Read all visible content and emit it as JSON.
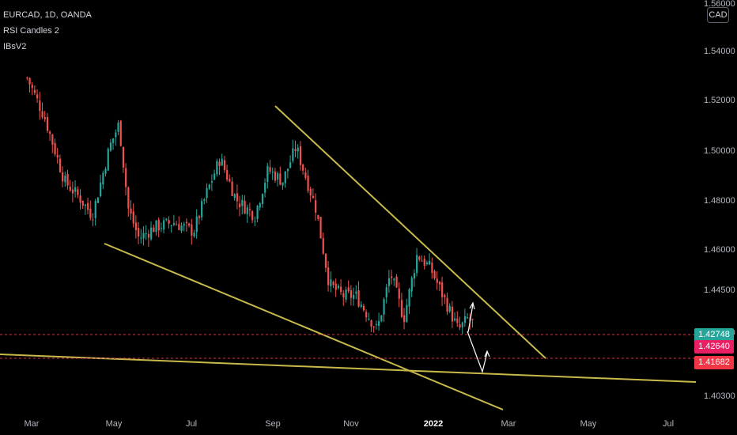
{
  "header": {
    "symbol_line": "EURCAD, 1D, OANDA",
    "indicator1": "RSI Candles 2",
    "indicator2": "IBsV2"
  },
  "currency_badge": "CAD",
  "colors": {
    "up": "#26a69a",
    "down": "#ef5350",
    "trendline": "#c8b94a",
    "dash": "#c23b4a",
    "price_green": "#26a69a",
    "price_pink": "#e91e63",
    "price_red": "#f23645"
  },
  "price_tags": {
    "last": "1.42748",
    "level1": "1.42640",
    "level2": "1.41682"
  },
  "chart_data": {
    "type": "candlestick",
    "title": "EURCAD, 1D, OANDA",
    "y_ticks": [
      "1.56000",
      "1.54000",
      "1.52000",
      "1.50000",
      "1.48000",
      "1.46000",
      "1.44500",
      "1.42000",
      "1.40300"
    ],
    "x_ticks": [
      "Mar",
      "May",
      "Jul",
      "Sep",
      "Nov",
      "2022",
      "Mar",
      "May",
      "Jul"
    ],
    "year_tick": "2022",
    "ylim": [
      1.4,
      1.56
    ],
    "horizontal_levels": [
      1.42748,
      1.4264
    ],
    "series": [
      {
        "date": "2021-02-25",
        "close": 1.535
      },
      {
        "date": "2021-03-10",
        "close": 1.518
      },
      {
        "date": "2021-03-25",
        "close": 1.49
      },
      {
        "date": "2021-04-05",
        "close": 1.483
      },
      {
        "date": "2021-04-15",
        "close": 1.475
      },
      {
        "date": "2021-04-28",
        "close": 1.505
      },
      {
        "date": "2021-05-05",
        "close": 1.515
      },
      {
        "date": "2021-05-12",
        "close": 1.478
      },
      {
        "date": "2021-05-20",
        "close": 1.465
      },
      {
        "date": "2021-06-01",
        "close": 1.47
      },
      {
        "date": "2021-06-15",
        "close": 1.472
      },
      {
        "date": "2021-06-30",
        "close": 1.468
      },
      {
        "date": "2021-07-10",
        "close": 1.485
      },
      {
        "date": "2021-07-20",
        "close": 1.5
      },
      {
        "date": "2021-08-01",
        "close": 1.482
      },
      {
        "date": "2021-08-15",
        "close": 1.475
      },
      {
        "date": "2021-08-25",
        "close": 1.495
      },
      {
        "date": "2021-09-05",
        "close": 1.49
      },
      {
        "date": "2021-09-15",
        "close": 1.505
      },
      {
        "date": "2021-09-30",
        "close": 1.478
      },
      {
        "date": "2021-10-10",
        "close": 1.445
      },
      {
        "date": "2021-10-20",
        "close": 1.44
      },
      {
        "date": "2021-10-30",
        "close": 1.44
      },
      {
        "date": "2021-11-15",
        "close": 1.425
      },
      {
        "date": "2021-11-25",
        "close": 1.45
      },
      {
        "date": "2021-12-05",
        "close": 1.43
      },
      {
        "date": "2021-12-15",
        "close": 1.458
      },
      {
        "date": "2021-12-25",
        "close": 1.452
      },
      {
        "date": "2022-01-05",
        "close": 1.438
      },
      {
        "date": "2022-01-15",
        "close": 1.425
      },
      {
        "date": "2022-01-22",
        "close": 1.43
      },
      {
        "date": "2022-01-27",
        "close": 1.4274
      }
    ]
  }
}
